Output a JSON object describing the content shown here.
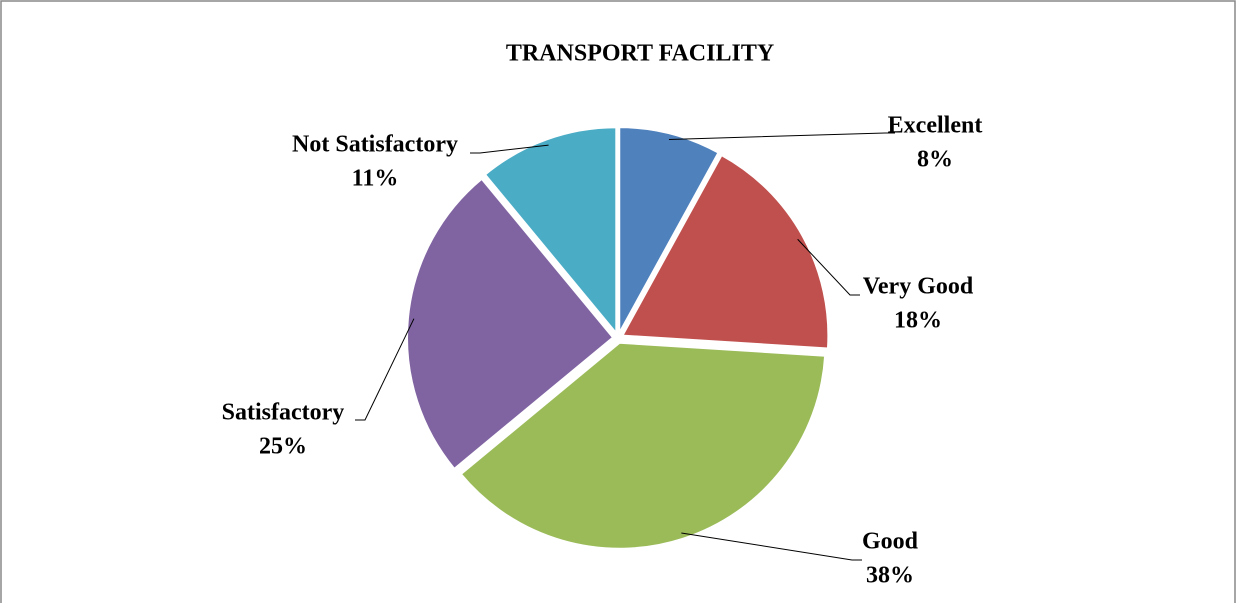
{
  "chart_data": {
    "type": "pie",
    "title": "TRANSPORT FACILITY",
    "categories": [
      "Excellent",
      "Very Good",
      "Good",
      "Satisfactory",
      "Not Satisfactory"
    ],
    "values": [
      8,
      18,
      38,
      25,
      11
    ],
    "value_labels": [
      "8%",
      "18%",
      "38%",
      "25%",
      "11%"
    ],
    "colors": [
      "#4f81bd",
      "#c0504d",
      "#9bbb59",
      "#8064a2",
      "#4bacc6"
    ]
  }
}
